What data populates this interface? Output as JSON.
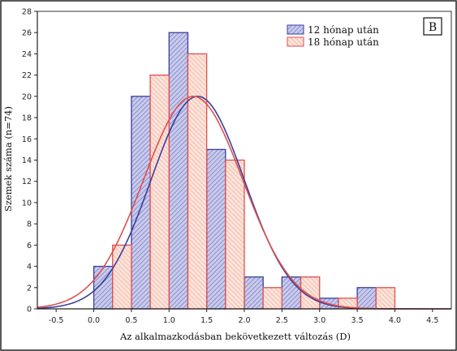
{
  "chart_data": {
    "type": "bar",
    "panel_label": "B",
    "xlabel": "Az alkalmazkodásban bekövetkezett változás (D)",
    "ylabel": "Szemek száma (n=74)",
    "xlim": [
      -0.75,
      4.75
    ],
    "ylim": [
      0,
      28
    ],
    "xticks": [
      -0.5,
      0.0,
      0.5,
      1.0,
      1.5,
      2.0,
      2.5,
      3.0,
      3.5,
      4.0,
      4.5
    ],
    "xtick_labels": [
      "-0.5",
      "0.0",
      "0.5",
      "1.0",
      "1.5",
      "2.0",
      "2.5",
      "3.0",
      "3.5",
      "4.0",
      "4.5"
    ],
    "yticks": [
      0,
      2,
      4,
      6,
      8,
      10,
      12,
      14,
      16,
      18,
      20,
      22,
      24,
      26,
      28
    ],
    "legend_position": "top-right",
    "series": [
      {
        "name": "12 hónap után",
        "color": "#3a3f9a",
        "fill": "#c9cbeb",
        "bins": [
          {
            "start": 0.0,
            "end": 0.25,
            "value": 4
          },
          {
            "start": 0.5,
            "end": 0.75,
            "value": 20
          },
          {
            "start": 1.0,
            "end": 1.25,
            "value": 26
          },
          {
            "start": 1.5,
            "end": 1.75,
            "value": 15
          },
          {
            "start": 2.0,
            "end": 2.25,
            "value": 3
          },
          {
            "start": 2.5,
            "end": 2.75,
            "value": 3
          },
          {
            "start": 3.0,
            "end": 3.25,
            "value": 1
          },
          {
            "start": 3.5,
            "end": 3.75,
            "value": 2
          }
        ],
        "normal_fit": {
          "mean": 1.38,
          "sd": 0.62,
          "peak": 20.0
        }
      },
      {
        "name": "18 hónap után",
        "color": "#e0504e",
        "fill": "#f8d2c8",
        "bins": [
          {
            "start": 0.25,
            "end": 0.5,
            "value": 6
          },
          {
            "start": 0.75,
            "end": 1.0,
            "value": 22
          },
          {
            "start": 1.25,
            "end": 1.5,
            "value": 24
          },
          {
            "start": 1.75,
            "end": 2.0,
            "value": 14
          },
          {
            "start": 2.25,
            "end": 2.5,
            "value": 2
          },
          {
            "start": 2.75,
            "end": 3.0,
            "value": 3
          },
          {
            "start": 3.25,
            "end": 3.5,
            "value": 1
          },
          {
            "start": 3.75,
            "end": 4.0,
            "value": 2
          }
        ],
        "normal_fit": {
          "mean": 1.32,
          "sd": 0.66,
          "peak": 20.0
        }
      }
    ]
  }
}
